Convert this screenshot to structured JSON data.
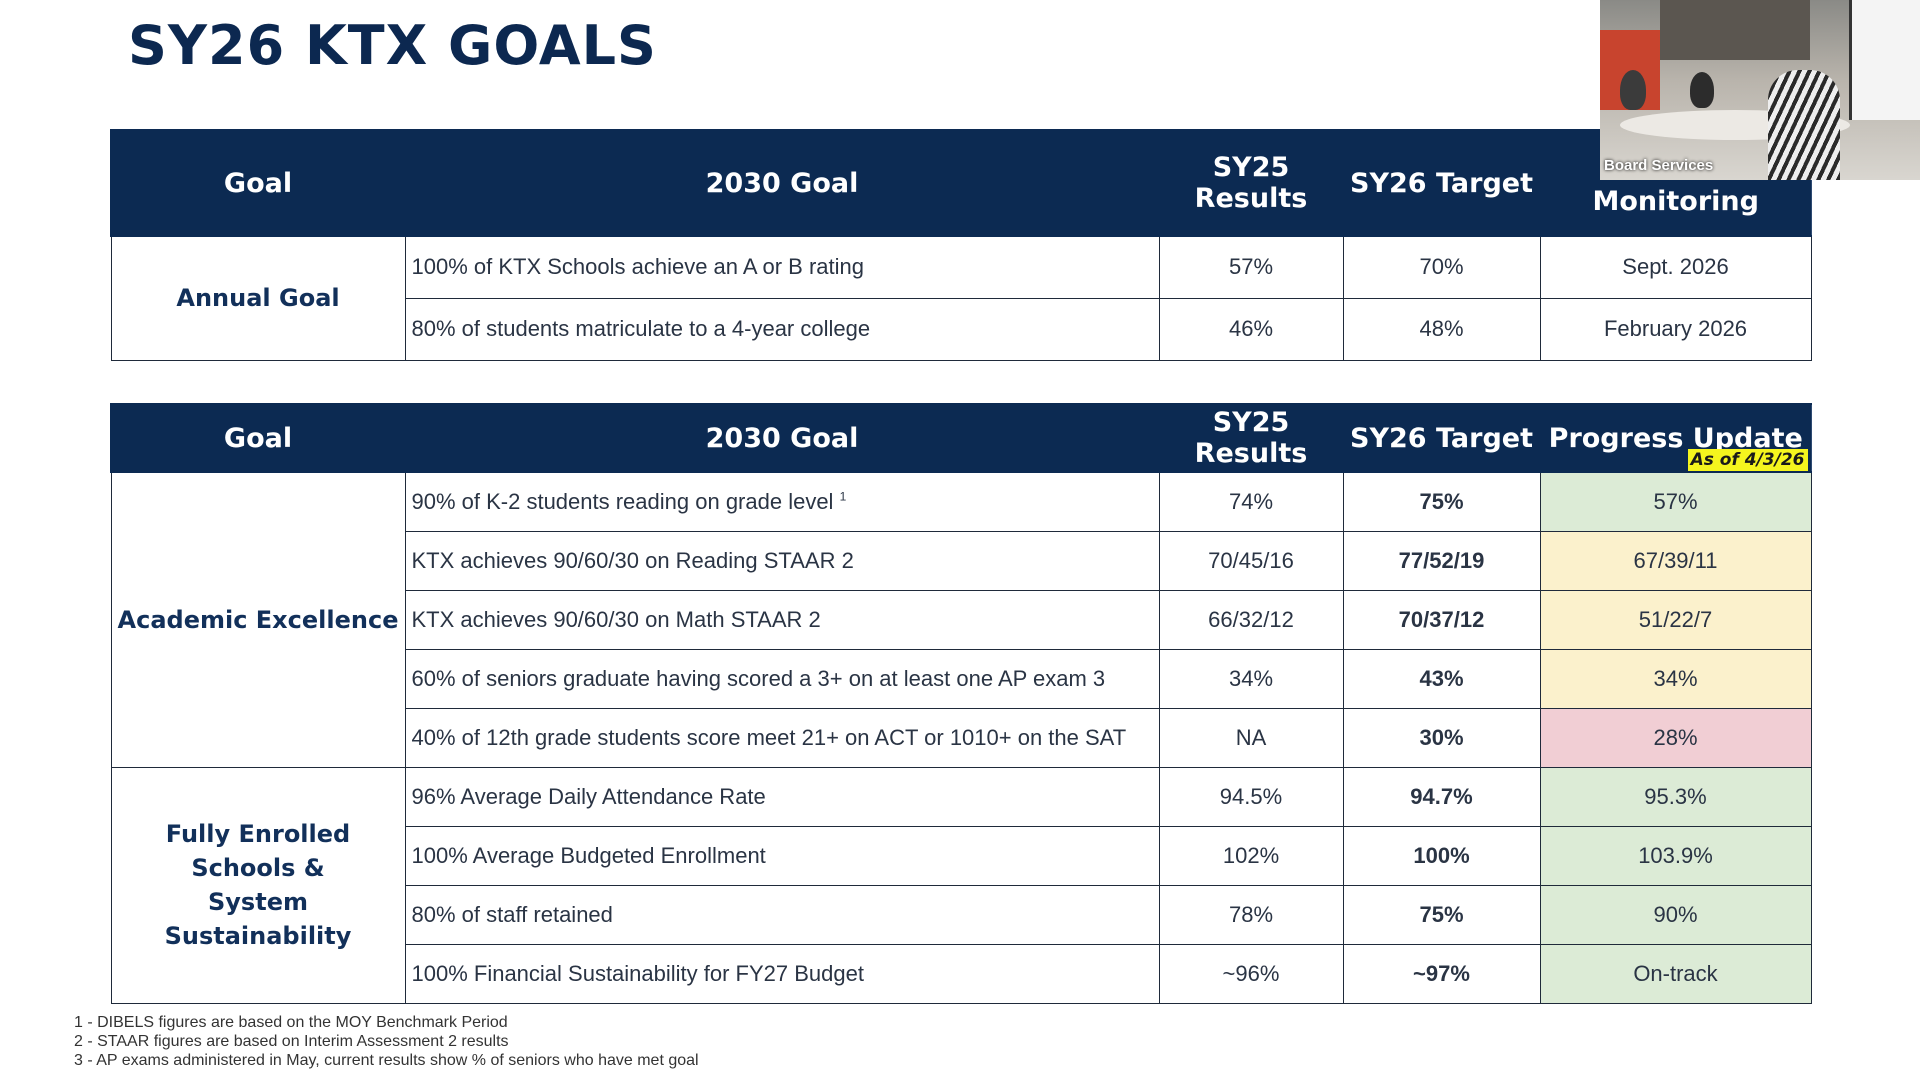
{
  "slide": {
    "title": "SY26 KTX GOALS"
  },
  "table1": {
    "headers": [
      "Goal",
      "2030 Goal",
      "SY25 Results",
      "SY26 Target",
      "Monitoring"
    ],
    "category": "Annual Goal",
    "rows": [
      {
        "goal": "100% of KTX Schools achieve an A or B rating",
        "sy25": "57%",
        "sy26": "70%",
        "monitor": "Sept. 2026"
      },
      {
        "goal": "80% of students matriculate to a 4-year college",
        "sy25": "46%",
        "sy26": "48%",
        "monitor": "February 2026"
      }
    ]
  },
  "table2": {
    "headers": [
      "Goal",
      "2030 Goal",
      "SY25 Results",
      "SY26 Target",
      "Progress Update"
    ],
    "as_of": "As of 4/3/26",
    "categories": [
      "Academic Excellence",
      "Fully Enrolled Schools &",
      "System Sustainability"
    ],
    "rows": [
      {
        "goal": "90% of K-2 students reading on grade level",
        "sup": "1",
        "sy25": "74%",
        "sy26": "75%",
        "progress": "57%",
        "status": "green"
      },
      {
        "goal": "KTX achieves 90/60/30 on Reading STAAR 2",
        "sy25": "70/45/16",
        "sy26": "77/52/19",
        "progress": "67/39/11",
        "status": "yellow"
      },
      {
        "goal": "KTX achieves 90/60/30 on Math STAAR 2",
        "sy25": "66/32/12",
        "sy26": "70/37/12",
        "progress": "51/22/7",
        "status": "yellow"
      },
      {
        "goal": "60% of seniors graduate having scored a 3+ on at least one AP exam 3",
        "sy25": "34%",
        "sy26": "43%",
        "progress": "34%",
        "status": "yellow"
      },
      {
        "goal": "40% of 12th grade students score meet 21+ on ACT or 1010+ on the SAT",
        "sy25": "NA",
        "sy26": "30%",
        "progress": "28%",
        "status": "red"
      },
      {
        "goal": "96% Average Daily Attendance Rate",
        "sy25": "94.5%",
        "sy26": "94.7%",
        "progress": "95.3%",
        "status": "green"
      },
      {
        "goal": "100% Average Budgeted Enrollment",
        "sy25": "102%",
        "sy26": "100%",
        "progress": "103.9%",
        "status": "green"
      },
      {
        "goal": "80% of staff retained",
        "sy25": "78%",
        "sy26": "75%",
        "progress": "90%",
        "status": "green"
      },
      {
        "goal": "100% Financial Sustainability for FY27 Budget",
        "sy25": "~96%",
        "sy26": "~97%",
        "progress": "On-track",
        "status": "green"
      }
    ]
  },
  "footnotes": [
    "1 - DIBELS figures are based on the MOY Benchmark Period",
    "2 - STAAR figures are based on Interim Assessment 2 results",
    "3 - AP exams administered in May, current results show % of seniors who have met goal"
  ],
  "video": {
    "label": "Board Services"
  },
  "colors": {
    "header_navy": "#0c2a52",
    "status_green": "#dcebd6",
    "status_yellow": "#fbf1cc",
    "status_red": "#f1ced4",
    "asof_highlight": "#f5f51e"
  }
}
